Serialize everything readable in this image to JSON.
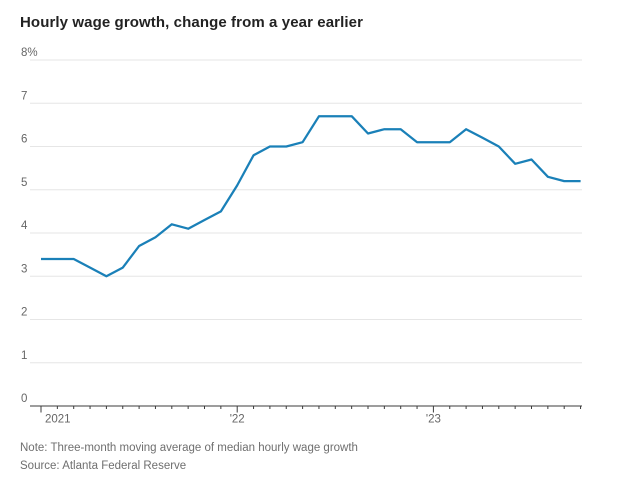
{
  "title": "Hourly wage growth, change from a year earlier",
  "footnotes": {
    "note": "Note: Three-month moving average of median hourly wage growth",
    "source": "Source: Atlanta Federal Reserve"
  },
  "colors": {
    "line": "#1a80b8",
    "grid": "#e6e6e6",
    "axis": "#3b3b3b",
    "tick_label": "#666666",
    "title_text": "#222222",
    "note_text": "#6f6f6f",
    "background": "#ffffff"
  },
  "chart_data": {
    "type": "line",
    "title": "Hourly wage growth, change from a year earlier",
    "ylabel": "",
    "xlabel": "",
    "unit": "percent",
    "frequency": "monthly",
    "x_start": "2021-01",
    "x_end": "2023-10",
    "x": [
      "2021-01",
      "2021-02",
      "2021-03",
      "2021-04",
      "2021-05",
      "2021-06",
      "2021-07",
      "2021-08",
      "2021-09",
      "2021-10",
      "2021-11",
      "2021-12",
      "2022-01",
      "2022-02",
      "2022-03",
      "2022-04",
      "2022-05",
      "2022-06",
      "2022-07",
      "2022-08",
      "2022-09",
      "2022-10",
      "2022-11",
      "2022-12",
      "2023-01",
      "2023-02",
      "2023-03",
      "2023-04",
      "2023-05",
      "2023-06",
      "2023-07",
      "2023-08",
      "2023-09",
      "2023-10"
    ],
    "series": [
      {
        "name": "Hourly wage growth",
        "values": [
          3.4,
          3.4,
          3.4,
          3.2,
          3.0,
          3.2,
          3.7,
          3.9,
          4.2,
          4.1,
          4.3,
          4.5,
          5.1,
          5.8,
          6.0,
          6.0,
          6.1,
          6.7,
          6.7,
          6.7,
          6.3,
          6.4,
          6.4,
          6.1,
          6.1,
          6.1,
          6.4,
          6.2,
          6.0,
          5.6,
          5.7,
          5.3,
          5.2,
          5.2
        ]
      }
    ],
    "ylim": [
      0,
      8
    ],
    "y_ticks": [
      0,
      1,
      2,
      3,
      4,
      5,
      6,
      7,
      8
    ],
    "y_tick_labels": [
      "0",
      "1",
      "2",
      "3",
      "4",
      "5",
      "6",
      "7",
      "8%"
    ],
    "x_year_tick_indices": [
      0,
      12,
      24
    ],
    "x_year_tick_labels": [
      "2021",
      "'22",
      "'23"
    ],
    "grid": "horizontal",
    "legend_position": "none"
  }
}
